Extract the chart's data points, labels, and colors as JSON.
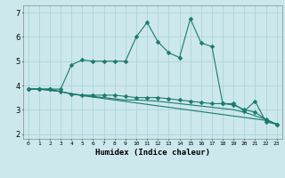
{
  "xlabel": "Humidex (Indice chaleur)",
  "background_color": "#cce8ec",
  "grid_color": "#aed4d8",
  "line_color": "#1a7a6e",
  "x_values": [
    0,
    1,
    2,
    3,
    4,
    5,
    6,
    7,
    8,
    9,
    10,
    11,
    12,
    13,
    14,
    15,
    16,
    17,
    18,
    19,
    20,
    21,
    22,
    23
  ],
  "line1": [
    3.85,
    3.85,
    3.85,
    3.85,
    4.85,
    5.05,
    5.0,
    5.0,
    5.0,
    5.0,
    6.0,
    6.6,
    5.8,
    5.35,
    5.15,
    6.75,
    5.75,
    5.6,
    3.25,
    3.25,
    2.95,
    3.35,
    2.5,
    2.4
  ],
  "line2": [
    3.85,
    3.85,
    3.85,
    3.75,
    3.65,
    3.6,
    3.6,
    3.6,
    3.6,
    3.55,
    3.5,
    3.5,
    3.5,
    3.45,
    3.4,
    3.35,
    3.3,
    3.25,
    3.25,
    3.2,
    3.0,
    2.9,
    2.6,
    2.4
  ],
  "line3": [
    3.85,
    3.85,
    3.8,
    3.75,
    3.65,
    3.6,
    3.55,
    3.5,
    3.45,
    3.4,
    3.4,
    3.38,
    3.35,
    3.3,
    3.25,
    3.2,
    3.15,
    3.1,
    3.05,
    3.0,
    2.9,
    2.75,
    2.6,
    2.4
  ],
  "line4": [
    3.85,
    3.85,
    3.8,
    3.75,
    3.65,
    3.58,
    3.52,
    3.46,
    3.4,
    3.34,
    3.28,
    3.22,
    3.16,
    3.1,
    3.04,
    2.98,
    2.92,
    2.86,
    2.8,
    2.74,
    2.68,
    2.62,
    2.56,
    2.4
  ],
  "ylim": [
    1.8,
    7.3
  ],
  "xlim": [
    -0.5,
    23.5
  ],
  "yticks": [
    2,
    3,
    4,
    5,
    6,
    7
  ],
  "xtick_labels": [
    "0",
    "1",
    "2",
    "3",
    "4",
    "5",
    "6",
    "7",
    "8",
    "9",
    "10",
    "11",
    "12",
    "13",
    "14",
    "15",
    "16",
    "17",
    "18",
    "19",
    "20",
    "21",
    "22",
    "23"
  ]
}
